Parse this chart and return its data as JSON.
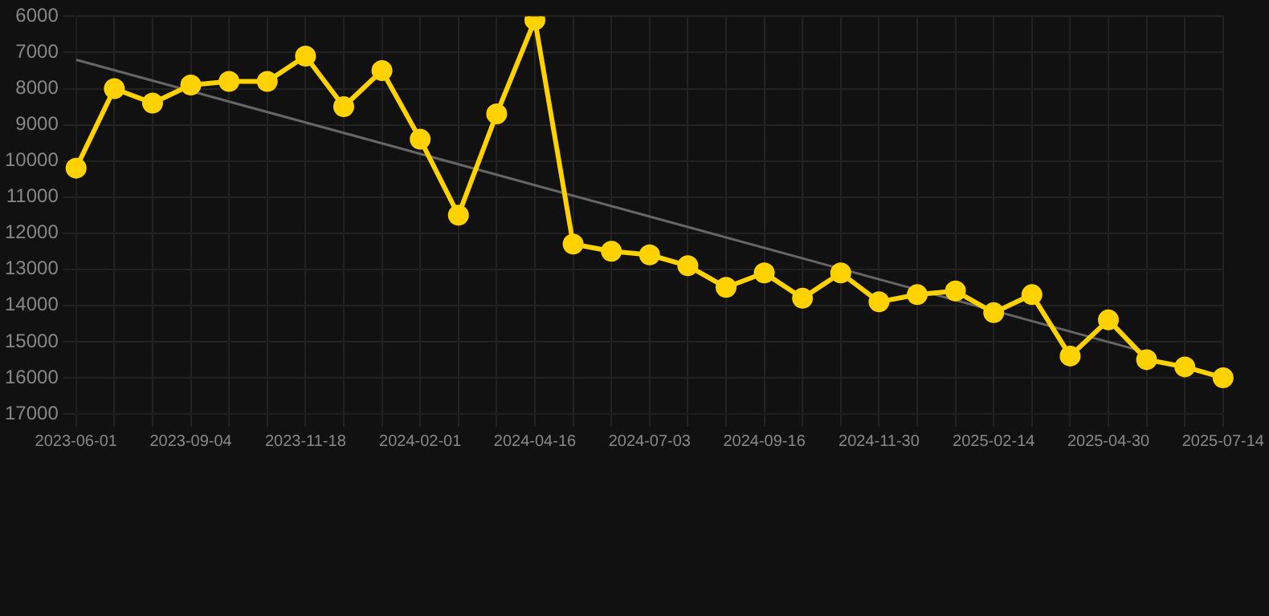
{
  "chart_data": {
    "type": "line",
    "categories": [
      "2023-06-01",
      null,
      null,
      "2023-09-04",
      null,
      null,
      "2023-11-18",
      null,
      null,
      "2024-02-01",
      null,
      null,
      "2024-04-16",
      null,
      null,
      "2024-07-03",
      null,
      null,
      "2024-09-16",
      null,
      null,
      "2024-11-30",
      null,
      null,
      "2025-02-14",
      null,
      null,
      "2025-04-30",
      null,
      null,
      "2025-07-14"
    ],
    "series": [
      {
        "color": "#ffd200",
        "marker": "circle",
        "values": [
          10200,
          8000,
          8400,
          7900,
          7800,
          7800,
          7100,
          8500,
          7500,
          9400,
          11500,
          8700,
          6100,
          12300,
          12500,
          12600,
          12900,
          13500,
          13100,
          13800,
          13100,
          13900,
          13700,
          13600,
          14200,
          13700,
          15400,
          14400,
          15500,
          15700,
          16000
        ]
      },
      {
        "type": "line",
        "color": "#666666",
        "marker": "none",
        "values": [
          7200,
          null,
          null,
          null,
          null,
          null,
          null,
          null,
          null,
          null,
          null,
          null,
          null,
          null,
          null,
          null,
          null,
          null,
          null,
          null,
          null,
          null,
          null,
          null,
          null,
          null,
          null,
          null,
          15300,
          null,
          null
        ]
      }
    ],
    "ylim": [
      17000,
      6000
    ],
    "yticks": [
      6000,
      7000,
      8000,
      9000,
      10000,
      11000,
      12000,
      13000,
      14000,
      15000,
      16000,
      17000
    ],
    "grid": true,
    "legend": false
  }
}
